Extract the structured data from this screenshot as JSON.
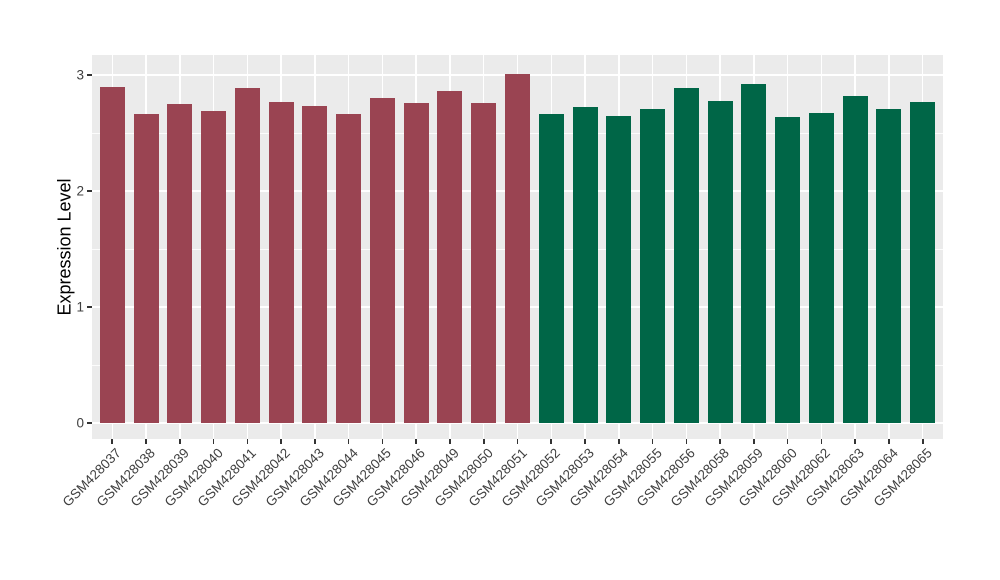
{
  "figure": {
    "background": "#FFFFFF",
    "panel_background": "#EBEBEB",
    "gridline_color": "#FFFFFF",
    "axis_text_color": "#404040",
    "axis_title_color": "#000000"
  },
  "chart_data": {
    "type": "bar",
    "title": "",
    "xlabel": "",
    "ylabel": "Expression Level",
    "ylim": [
      -0.14,
      3.17
    ],
    "yticks": [
      0,
      1,
      2,
      3
    ],
    "ytick_labels": [
      "0",
      "1",
      "2",
      "3"
    ],
    "minor_yticks": [
      0.5,
      1.5,
      2.5
    ],
    "grid": "major+minor, white on gray panel",
    "legend_position": "none",
    "group_colors": {
      "red": "#9A4452",
      "green": "#006647"
    },
    "categories": [
      "GSM428037",
      "GSM428038",
      "GSM428039",
      "GSM428040",
      "GSM428041",
      "GSM428042",
      "GSM428043",
      "GSM428044",
      "GSM428045",
      "GSM428046",
      "GSM428049",
      "GSM428050",
      "GSM428051",
      "GSM428052",
      "GSM428053",
      "GSM428054",
      "GSM428055",
      "GSM428056",
      "GSM428058",
      "GSM428059",
      "GSM428060",
      "GSM428062",
      "GSM428063",
      "GSM428064",
      "GSM428065"
    ],
    "bars": [
      {
        "label": "GSM428037",
        "value": 2.9,
        "group": "red"
      },
      {
        "label": "GSM428038",
        "value": 2.66,
        "group": "red"
      },
      {
        "label": "GSM428039",
        "value": 2.75,
        "group": "red"
      },
      {
        "label": "GSM428040",
        "value": 2.69,
        "group": "red"
      },
      {
        "label": "GSM428041",
        "value": 2.89,
        "group": "red"
      },
      {
        "label": "GSM428042",
        "value": 2.77,
        "group": "red"
      },
      {
        "label": "GSM428043",
        "value": 2.73,
        "group": "red"
      },
      {
        "label": "GSM428044",
        "value": 2.66,
        "group": "red"
      },
      {
        "label": "GSM428045",
        "value": 2.8,
        "group": "red"
      },
      {
        "label": "GSM428046",
        "value": 2.76,
        "group": "red"
      },
      {
        "label": "GSM428049",
        "value": 2.86,
        "group": "red"
      },
      {
        "label": "GSM428050",
        "value": 2.76,
        "group": "red"
      },
      {
        "label": "GSM428051",
        "value": 3.01,
        "group": "red"
      },
      {
        "label": "GSM428052",
        "value": 2.66,
        "group": "green"
      },
      {
        "label": "GSM428053",
        "value": 2.72,
        "group": "green"
      },
      {
        "label": "GSM428054",
        "value": 2.65,
        "group": "green"
      },
      {
        "label": "GSM428055",
        "value": 2.71,
        "group": "green"
      },
      {
        "label": "GSM428056",
        "value": 2.89,
        "group": "green"
      },
      {
        "label": "GSM428058",
        "value": 2.78,
        "group": "green"
      },
      {
        "label": "GSM428059",
        "value": 2.92,
        "group": "green"
      },
      {
        "label": "GSM428060",
        "value": 2.64,
        "group": "green"
      },
      {
        "label": "GSM428062",
        "value": 2.67,
        "group": "green"
      },
      {
        "label": "GSM428063",
        "value": 2.82,
        "group": "green"
      },
      {
        "label": "GSM428064",
        "value": 2.71,
        "group": "green"
      },
      {
        "label": "GSM428065",
        "value": 2.77,
        "group": "green"
      }
    ]
  }
}
